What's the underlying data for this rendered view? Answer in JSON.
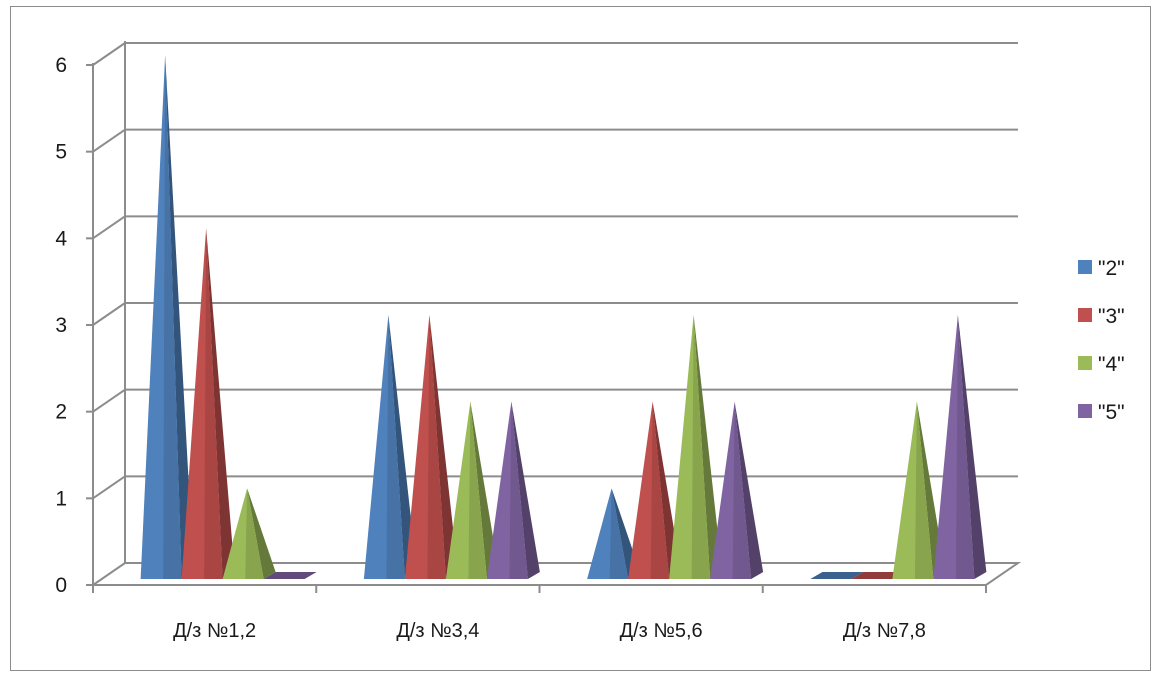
{
  "chart_data": {
    "type": "bar",
    "style": "3d-pyramid",
    "categories": [
      "Д/з №1,2",
      "Д/з №3,4",
      "Д/з №5,6",
      "Д/з №7,8"
    ],
    "series": [
      {
        "name": "\"2\"",
        "color": "#4F81BD",
        "values": [
          6,
          3,
          1,
          0
        ]
      },
      {
        "name": "\"3\"",
        "color": "#C0504D",
        "values": [
          4,
          3,
          2,
          0
        ]
      },
      {
        "name": "\"4\"",
        "color": "#9BBB59",
        "values": [
          1,
          2,
          3,
          2
        ]
      },
      {
        "name": "\"5\"",
        "color": "#8064A2",
        "values": [
          0,
          2,
          2,
          3
        ]
      }
    ],
    "yticks": [
      0,
      1,
      2,
      3,
      4,
      5,
      6
    ],
    "ylim": [
      0,
      6
    ],
    "grid": true,
    "legend_position": "right",
    "title": "",
    "xlabel": "",
    "ylabel": ""
  }
}
